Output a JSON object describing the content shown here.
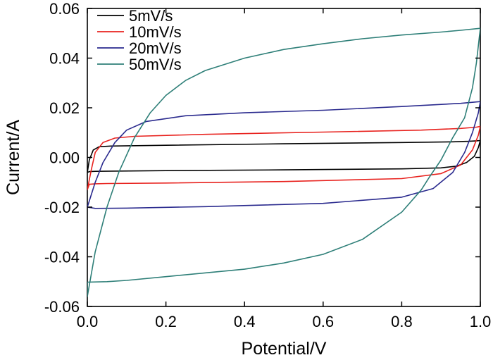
{
  "chart_data": {
    "type": "line",
    "title": "",
    "xlabel": "Potential/V",
    "ylabel": "Current/A",
    "xlim": [
      0.0,
      1.0
    ],
    "ylim": [
      -0.06,
      0.06
    ],
    "x_ticks": [
      0.0,
      0.2,
      0.4,
      0.6,
      0.8,
      1.0
    ],
    "x_tick_labels": [
      "0.0",
      "0.2",
      "0.4",
      "0.6",
      "0.8",
      "1.0"
    ],
    "y_ticks": [
      -0.06,
      -0.04,
      -0.02,
      0.0,
      0.02,
      0.04,
      0.06
    ],
    "y_tick_labels": [
      "-0.06",
      "-0.04",
      "-0.02",
      "0.00",
      "0.02",
      "0.04",
      "0.06"
    ],
    "grid": false,
    "legend_position": "top-left",
    "series": [
      {
        "name": "5mV/s",
        "color": "#000000",
        "x": [
          0.0,
          0.005,
          0.015,
          0.03,
          0.06,
          0.2,
          0.5,
          0.8,
          0.93,
          0.97,
          0.99,
          1.0,
          0.995,
          0.985,
          0.965,
          0.94,
          0.9,
          0.8,
          0.5,
          0.2,
          0.06,
          0.02,
          0.005,
          0.0
        ],
        "y": [
          -0.006,
          -0.001,
          0.003,
          0.0043,
          0.0046,
          0.0049,
          0.0055,
          0.006,
          0.0063,
          0.0065,
          0.0067,
          0.0068,
          0.004,
          0.0005,
          -0.002,
          -0.0035,
          -0.0042,
          -0.0046,
          -0.005,
          -0.0053,
          -0.0055,
          -0.0056,
          -0.0057,
          -0.006
        ]
      },
      {
        "name": "10mV/s",
        "color": "#e8231f",
        "x": [
          0.0,
          0.01,
          0.02,
          0.04,
          0.07,
          0.12,
          0.3,
          0.6,
          0.85,
          0.95,
          0.99,
          1.0,
          0.995,
          0.98,
          0.95,
          0.9,
          0.8,
          0.5,
          0.2,
          0.05,
          0.02,
          0.005,
          0.0
        ],
        "y": [
          -0.013,
          -0.005,
          0.002,
          0.006,
          0.0078,
          0.0085,
          0.0093,
          0.0102,
          0.011,
          0.0117,
          0.0122,
          0.0125,
          0.009,
          0.003,
          -0.003,
          -0.0065,
          -0.0085,
          -0.0097,
          -0.0103,
          -0.0105,
          -0.0106,
          -0.0108,
          -0.013
        ]
      },
      {
        "name": "20mV/s",
        "color": "#2a2a8e",
        "x": [
          0.0,
          0.02,
          0.04,
          0.07,
          0.1,
          0.15,
          0.25,
          0.4,
          0.6,
          0.8,
          0.95,
          1.0,
          0.995,
          0.98,
          0.96,
          0.93,
          0.88,
          0.8,
          0.6,
          0.3,
          0.1,
          0.02,
          0.0
        ],
        "y": [
          -0.02,
          -0.01,
          -0.002,
          0.006,
          0.011,
          0.0145,
          0.0168,
          0.018,
          0.019,
          0.0205,
          0.0218,
          0.0225,
          0.018,
          0.01,
          0.002,
          -0.006,
          -0.0125,
          -0.016,
          -0.0185,
          -0.0198,
          -0.0204,
          -0.0205,
          -0.02
        ]
      },
      {
        "name": "50mV/s",
        "color": "#2e7f78",
        "x": [
          0.0,
          0.02,
          0.05,
          0.08,
          0.12,
          0.16,
          0.2,
          0.25,
          0.3,
          0.4,
          0.5,
          0.6,
          0.7,
          0.8,
          0.9,
          0.95,
          1.0,
          0.995,
          0.99,
          0.98,
          0.96,
          0.93,
          0.9,
          0.87,
          0.85,
          0.8,
          0.7,
          0.6,
          0.5,
          0.4,
          0.2,
          0.1,
          0.05,
          0.0
        ],
        "y": [
          -0.056,
          -0.038,
          -0.02,
          -0.006,
          0.008,
          0.018,
          0.025,
          0.031,
          0.035,
          0.04,
          0.0435,
          0.0458,
          0.0478,
          0.0493,
          0.0505,
          0.0512,
          0.052,
          0.045,
          0.038,
          0.028,
          0.016,
          0.008,
          -0.001,
          -0.008,
          -0.013,
          -0.022,
          -0.033,
          -0.039,
          -0.0425,
          -0.045,
          -0.048,
          -0.0495,
          -0.05,
          -0.0502
        ]
      }
    ]
  }
}
